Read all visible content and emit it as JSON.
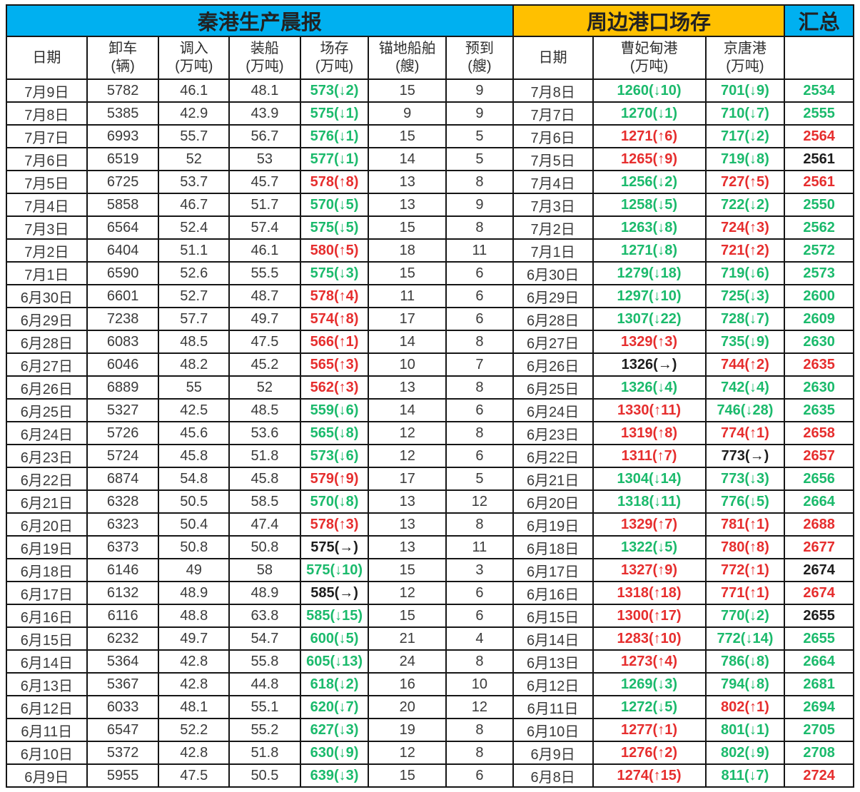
{
  "titles": {
    "left": "秦港生产晨报",
    "right": "周边港口场存",
    "total": "汇总"
  },
  "headers": {
    "left": [
      "日期",
      "卸车\n(辆)",
      "调入\n(万吨)",
      "装船\n(万吨)",
      "场存\n(万吨)",
      "锚地船舶\n(艘)",
      "预到\n(艘)"
    ],
    "right": [
      "日期",
      "曹妃甸港\n(万吨)",
      "京唐港\n(万吨)"
    ],
    "total_blank": ""
  },
  "colors": {
    "green": "#1bba6c",
    "red": "#e62e2e",
    "black": "#1d1d1d",
    "title_cyan": "#00b0f0",
    "title_orange": "#ffc000"
  },
  "legend_note": "c codes: g=green decrease, r=red increase, k=black no-change/bold",
  "rows": [
    {
      "date_qhd": "7月9日",
      "unload": "5782",
      "inflow": "46.1",
      "ship": "48.1",
      "stock": {
        "v": "573",
        "chg": "↓2",
        "c": "g"
      },
      "anchored": "15",
      "expected": "9",
      "date_nb": "7月8日",
      "caofeidian": {
        "v": "1260",
        "chg": "↓10",
        "c": "g"
      },
      "jingtang": {
        "v": "701",
        "chg": "↓9",
        "c": "g"
      },
      "total": {
        "v": "2534",
        "c": "g"
      }
    },
    {
      "date_qhd": "7月8日",
      "unload": "5385",
      "inflow": "42.9",
      "ship": "43.9",
      "stock": {
        "v": "575",
        "chg": "↓1",
        "c": "g"
      },
      "anchored": "9",
      "expected": "9",
      "date_nb": "7月7日",
      "caofeidian": {
        "v": "1270",
        "chg": "↓1",
        "c": "g"
      },
      "jingtang": {
        "v": "710",
        "chg": "↓7",
        "c": "g"
      },
      "total": {
        "v": "2555",
        "c": "g"
      }
    },
    {
      "date_qhd": "7月7日",
      "unload": "6993",
      "inflow": "55.7",
      "ship": "56.7",
      "stock": {
        "v": "576",
        "chg": "↓1",
        "c": "g"
      },
      "anchored": "15",
      "expected": "5",
      "date_nb": "7月6日",
      "caofeidian": {
        "v": "1271",
        "chg": "↑6",
        "c": "r"
      },
      "jingtang": {
        "v": "717",
        "chg": "↓2",
        "c": "g"
      },
      "total": {
        "v": "2564",
        "c": "r"
      }
    },
    {
      "date_qhd": "7月6日",
      "unload": "6519",
      "inflow": "52",
      "ship": "53",
      "stock": {
        "v": "577",
        "chg": "↓1",
        "c": "g"
      },
      "anchored": "14",
      "expected": "5",
      "date_nb": "7月5日",
      "caofeidian": {
        "v": "1265",
        "chg": "↑9",
        "c": "r"
      },
      "jingtang": {
        "v": "719",
        "chg": "↓8",
        "c": "g"
      },
      "total": {
        "v": "2561",
        "c": "k"
      }
    },
    {
      "date_qhd": "7月5日",
      "unload": "6725",
      "inflow": "53.7",
      "ship": "45.7",
      "stock": {
        "v": "578",
        "chg": "↑8",
        "c": "r"
      },
      "anchored": "13",
      "expected": "8",
      "date_nb": "7月4日",
      "caofeidian": {
        "v": "1256",
        "chg": "↓2",
        "c": "g"
      },
      "jingtang": {
        "v": "727",
        "chg": "↑5",
        "c": "r"
      },
      "total": {
        "v": "2561",
        "c": "r"
      }
    },
    {
      "date_qhd": "7月4日",
      "unload": "5858",
      "inflow": "46.7",
      "ship": "51.7",
      "stock": {
        "v": "570",
        "chg": "↓5",
        "c": "g"
      },
      "anchored": "13",
      "expected": "9",
      "date_nb": "7月3日",
      "caofeidian": {
        "v": "1258",
        "chg": "↓5",
        "c": "g"
      },
      "jingtang": {
        "v": "722",
        "chg": "↓2",
        "c": "g"
      },
      "total": {
        "v": "2550",
        "c": "g"
      }
    },
    {
      "date_qhd": "7月3日",
      "unload": "6564",
      "inflow": "52.4",
      "ship": "57.4",
      "stock": {
        "v": "575",
        "chg": "↓5",
        "c": "g"
      },
      "anchored": "15",
      "expected": "8",
      "date_nb": "7月2日",
      "caofeidian": {
        "v": "1263",
        "chg": "↓8",
        "c": "g"
      },
      "jingtang": {
        "v": "724",
        "chg": "↑3",
        "c": "r"
      },
      "total": {
        "v": "2562",
        "c": "g"
      }
    },
    {
      "date_qhd": "7月2日",
      "unload": "6404",
      "inflow": "51.1",
      "ship": "46.1",
      "stock": {
        "v": "580",
        "chg": "↑5",
        "c": "r"
      },
      "anchored": "18",
      "expected": "11",
      "date_nb": "7月1日",
      "caofeidian": {
        "v": "1271",
        "chg": "↓8",
        "c": "g"
      },
      "jingtang": {
        "v": "721",
        "chg": "↑2",
        "c": "r"
      },
      "total": {
        "v": "2572",
        "c": "g"
      }
    },
    {
      "date_qhd": "7月1日",
      "unload": "6590",
      "inflow": "52.6",
      "ship": "55.5",
      "stock": {
        "v": "575",
        "chg": "↓3",
        "c": "g"
      },
      "anchored": "15",
      "expected": "6",
      "date_nb": "6月30日",
      "caofeidian": {
        "v": "1279",
        "chg": "↓18",
        "c": "g"
      },
      "jingtang": {
        "v": "719",
        "chg": "↓6",
        "c": "g"
      },
      "total": {
        "v": "2573",
        "c": "g"
      }
    },
    {
      "date_qhd": "6月30日",
      "unload": "6601",
      "inflow": "52.7",
      "ship": "48.7",
      "stock": {
        "v": "578",
        "chg": "↑4",
        "c": "r"
      },
      "anchored": "11",
      "expected": "6",
      "date_nb": "6月29日",
      "caofeidian": {
        "v": "1297",
        "chg": "↓10",
        "c": "g"
      },
      "jingtang": {
        "v": "725",
        "chg": "↓3",
        "c": "g"
      },
      "total": {
        "v": "2600",
        "c": "g"
      }
    },
    {
      "date_qhd": "6月29日",
      "unload": "7238",
      "inflow": "57.7",
      "ship": "49.7",
      "stock": {
        "v": "574",
        "chg": "↑8",
        "c": "r"
      },
      "anchored": "17",
      "expected": "6",
      "date_nb": "6月28日",
      "caofeidian": {
        "v": "1307",
        "chg": "↓22",
        "c": "g"
      },
      "jingtang": {
        "v": "728",
        "chg": "↓7",
        "c": "g"
      },
      "total": {
        "v": "2609",
        "c": "g"
      }
    },
    {
      "date_qhd": "6月28日",
      "unload": "6083",
      "inflow": "48.5",
      "ship": "47.5",
      "stock": {
        "v": "566",
        "chg": "↑1",
        "c": "r"
      },
      "anchored": "14",
      "expected": "8",
      "date_nb": "6月27日",
      "caofeidian": {
        "v": "1329",
        "chg": "↑3",
        "c": "r"
      },
      "jingtang": {
        "v": "735",
        "chg": "↓9",
        "c": "g"
      },
      "total": {
        "v": "2630",
        "c": "g"
      }
    },
    {
      "date_qhd": "6月27日",
      "unload": "6046",
      "inflow": "48.2",
      "ship": "45.2",
      "stock": {
        "v": "565",
        "chg": "↑3",
        "c": "r"
      },
      "anchored": "10",
      "expected": "7",
      "date_nb": "6月26日",
      "caofeidian": {
        "v": "1326",
        "chg": "→",
        "c": "k"
      },
      "jingtang": {
        "v": "744",
        "chg": "↑2",
        "c": "r"
      },
      "total": {
        "v": "2635",
        "c": "r"
      }
    },
    {
      "date_qhd": "6月26日",
      "unload": "6889",
      "inflow": "55",
      "ship": "52",
      "stock": {
        "v": "562",
        "chg": "↑3",
        "c": "r"
      },
      "anchored": "13",
      "expected": "8",
      "date_nb": "6月25日",
      "caofeidian": {
        "v": "1326",
        "chg": "↓4",
        "c": "g"
      },
      "jingtang": {
        "v": "742",
        "chg": "↓4",
        "c": "g"
      },
      "total": {
        "v": "2630",
        "c": "g"
      }
    },
    {
      "date_qhd": "6月25日",
      "unload": "5327",
      "inflow": "42.5",
      "ship": "48.5",
      "stock": {
        "v": "559",
        "chg": "↓6",
        "c": "g"
      },
      "anchored": "14",
      "expected": "6",
      "date_nb": "6月24日",
      "caofeidian": {
        "v": "1330",
        "chg": "↑11",
        "c": "r"
      },
      "jingtang": {
        "v": "746",
        "chg": "↓28",
        "c": "g"
      },
      "total": {
        "v": "2635",
        "c": "g"
      }
    },
    {
      "date_qhd": "6月24日",
      "unload": "5726",
      "inflow": "45.6",
      "ship": "53.6",
      "stock": {
        "v": "565",
        "chg": "↓8",
        "c": "g"
      },
      "anchored": "12",
      "expected": "8",
      "date_nb": "6月23日",
      "caofeidian": {
        "v": "1319",
        "chg": "↑8",
        "c": "r"
      },
      "jingtang": {
        "v": "774",
        "chg": "↑1",
        "c": "r"
      },
      "total": {
        "v": "2658",
        "c": "r"
      }
    },
    {
      "date_qhd": "6月23日",
      "unload": "5724",
      "inflow": "45.8",
      "ship": "51.8",
      "stock": {
        "v": "573",
        "chg": "↓6",
        "c": "g"
      },
      "anchored": "12",
      "expected": "6",
      "date_nb": "6月22日",
      "caofeidian": {
        "v": "1311",
        "chg": "↑7",
        "c": "r"
      },
      "jingtang": {
        "v": "773",
        "chg": "→",
        "c": "k"
      },
      "total": {
        "v": "2657",
        "c": "r"
      }
    },
    {
      "date_qhd": "6月22日",
      "unload": "6874",
      "inflow": "54.8",
      "ship": "45.8",
      "stock": {
        "v": "579",
        "chg": "↑9",
        "c": "r"
      },
      "anchored": "17",
      "expected": "5",
      "date_nb": "6月21日",
      "caofeidian": {
        "v": "1304",
        "chg": "↓14",
        "c": "g"
      },
      "jingtang": {
        "v": "773",
        "chg": "↓3",
        "c": "g"
      },
      "total": {
        "v": "2656",
        "c": "g"
      }
    },
    {
      "date_qhd": "6月21日",
      "unload": "6328",
      "inflow": "50.5",
      "ship": "58.5",
      "stock": {
        "v": "570",
        "chg": "↓8",
        "c": "g"
      },
      "anchored": "13",
      "expected": "12",
      "date_nb": "6月20日",
      "caofeidian": {
        "v": "1318",
        "chg": "↓11",
        "c": "g"
      },
      "jingtang": {
        "v": "776",
        "chg": "↓5",
        "c": "g"
      },
      "total": {
        "v": "2664",
        "c": "g"
      }
    },
    {
      "date_qhd": "6月20日",
      "unload": "6323",
      "inflow": "50.4",
      "ship": "47.4",
      "stock": {
        "v": "578",
        "chg": "↑3",
        "c": "r"
      },
      "anchored": "13",
      "expected": "8",
      "date_nb": "6月19日",
      "caofeidian": {
        "v": "1329",
        "chg": "↑7",
        "c": "r"
      },
      "jingtang": {
        "v": "781",
        "chg": "↑1",
        "c": "r"
      },
      "total": {
        "v": "2688",
        "c": "r"
      }
    },
    {
      "date_qhd": "6月19日",
      "unload": "6373",
      "inflow": "50.8",
      "ship": "50.8",
      "stock": {
        "v": "575",
        "chg": "→",
        "c": "k"
      },
      "anchored": "13",
      "expected": "11",
      "date_nb": "6月18日",
      "caofeidian": {
        "v": "1322",
        "chg": "↓5",
        "c": "g"
      },
      "jingtang": {
        "v": "780",
        "chg": "↑8",
        "c": "r"
      },
      "total": {
        "v": "2677",
        "c": "r"
      }
    },
    {
      "date_qhd": "6月18日",
      "unload": "6146",
      "inflow": "49",
      "ship": "58",
      "stock": {
        "v": "575",
        "chg": "↓10",
        "c": "g"
      },
      "anchored": "15",
      "expected": "3",
      "date_nb": "6月17日",
      "caofeidian": {
        "v": "1327",
        "chg": "↑9",
        "c": "r"
      },
      "jingtang": {
        "v": "772",
        "chg": "↑1",
        "c": "r"
      },
      "total": {
        "v": "2674",
        "c": "k"
      }
    },
    {
      "date_qhd": "6月17日",
      "unload": "6132",
      "inflow": "48.9",
      "ship": "48.9",
      "stock": {
        "v": "585",
        "chg": "→",
        "c": "k"
      },
      "anchored": "12",
      "expected": "6",
      "date_nb": "6月16日",
      "caofeidian": {
        "v": "1318",
        "chg": "↑18",
        "c": "r"
      },
      "jingtang": {
        "v": "771",
        "chg": "↑1",
        "c": "r"
      },
      "total": {
        "v": "2674",
        "c": "r"
      }
    },
    {
      "date_qhd": "6月16日",
      "unload": "6116",
      "inflow": "48.8",
      "ship": "63.8",
      "stock": {
        "v": "585",
        "chg": "↓15",
        "c": "g"
      },
      "anchored": "15",
      "expected": "6",
      "date_nb": "6月15日",
      "caofeidian": {
        "v": "1300",
        "chg": "↑17",
        "c": "r"
      },
      "jingtang": {
        "v": "770",
        "chg": "↓2",
        "c": "g"
      },
      "total": {
        "v": "2655",
        "c": "k"
      }
    },
    {
      "date_qhd": "6月15日",
      "unload": "6232",
      "inflow": "49.7",
      "ship": "54.7",
      "stock": {
        "v": "600",
        "chg": "↓5",
        "c": "g"
      },
      "anchored": "21",
      "expected": "4",
      "date_nb": "6月14日",
      "caofeidian": {
        "v": "1283",
        "chg": "↑10",
        "c": "r"
      },
      "jingtang": {
        "v": "772",
        "chg": "↓14",
        "c": "g"
      },
      "total": {
        "v": "2655",
        "c": "g"
      }
    },
    {
      "date_qhd": "6月14日",
      "unload": "5364",
      "inflow": "42.8",
      "ship": "55.8",
      "stock": {
        "v": "605",
        "chg": "↓13",
        "c": "g"
      },
      "anchored": "24",
      "expected": "8",
      "date_nb": "6月13日",
      "caofeidian": {
        "v": "1273",
        "chg": "↑4",
        "c": "r"
      },
      "jingtang": {
        "v": "786",
        "chg": "↓8",
        "c": "g"
      },
      "total": {
        "v": "2664",
        "c": "g"
      }
    },
    {
      "date_qhd": "6月13日",
      "unload": "5367",
      "inflow": "42.8",
      "ship": "44.8",
      "stock": {
        "v": "618",
        "chg": "↓2",
        "c": "g"
      },
      "anchored": "16",
      "expected": "10",
      "date_nb": "6月12日",
      "caofeidian": {
        "v": "1269",
        "chg": "↓3",
        "c": "g"
      },
      "jingtang": {
        "v": "794",
        "chg": "↓8",
        "c": "g"
      },
      "total": {
        "v": "2681",
        "c": "g"
      }
    },
    {
      "date_qhd": "6月12日",
      "unload": "6033",
      "inflow": "48.1",
      "ship": "55.1",
      "stock": {
        "v": "620",
        "chg": "↓7",
        "c": "g"
      },
      "anchored": "20",
      "expected": "12",
      "date_nb": "6月11日",
      "caofeidian": {
        "v": "1272",
        "chg": "↓5",
        "c": "g"
      },
      "jingtang": {
        "v": "802",
        "chg": "↑1",
        "c": "r"
      },
      "total": {
        "v": "2694",
        "c": "g"
      }
    },
    {
      "date_qhd": "6月11日",
      "unload": "6547",
      "inflow": "52.2",
      "ship": "55.2",
      "stock": {
        "v": "627",
        "chg": "↓3",
        "c": "g"
      },
      "anchored": "19",
      "expected": "8",
      "date_nb": "6月10日",
      "caofeidian": {
        "v": "1277",
        "chg": "↑1",
        "c": "r"
      },
      "jingtang": {
        "v": "801",
        "chg": "↓1",
        "c": "g"
      },
      "total": {
        "v": "2705",
        "c": "g"
      }
    },
    {
      "date_qhd": "6月10日",
      "unload": "5372",
      "inflow": "42.8",
      "ship": "51.8",
      "stock": {
        "v": "630",
        "chg": "↓9",
        "c": "g"
      },
      "anchored": "12",
      "expected": "8",
      "date_nb": "6月9日",
      "caofeidian": {
        "v": "1276",
        "chg": "↑2",
        "c": "r"
      },
      "jingtang": {
        "v": "802",
        "chg": "↓9",
        "c": "g"
      },
      "total": {
        "v": "2708",
        "c": "g"
      }
    },
    {
      "date_qhd": "6月9日",
      "unload": "5955",
      "inflow": "47.5",
      "ship": "50.5",
      "stock": {
        "v": "639",
        "chg": "↓3",
        "c": "g"
      },
      "anchored": "15",
      "expected": "6",
      "date_nb": "6月8日",
      "caofeidian": {
        "v": "1274",
        "chg": "↑15",
        "c": "r"
      },
      "jingtang": {
        "v": "811",
        "chg": "↓7",
        "c": "g"
      },
      "total": {
        "v": "2724",
        "c": "r"
      }
    }
  ]
}
